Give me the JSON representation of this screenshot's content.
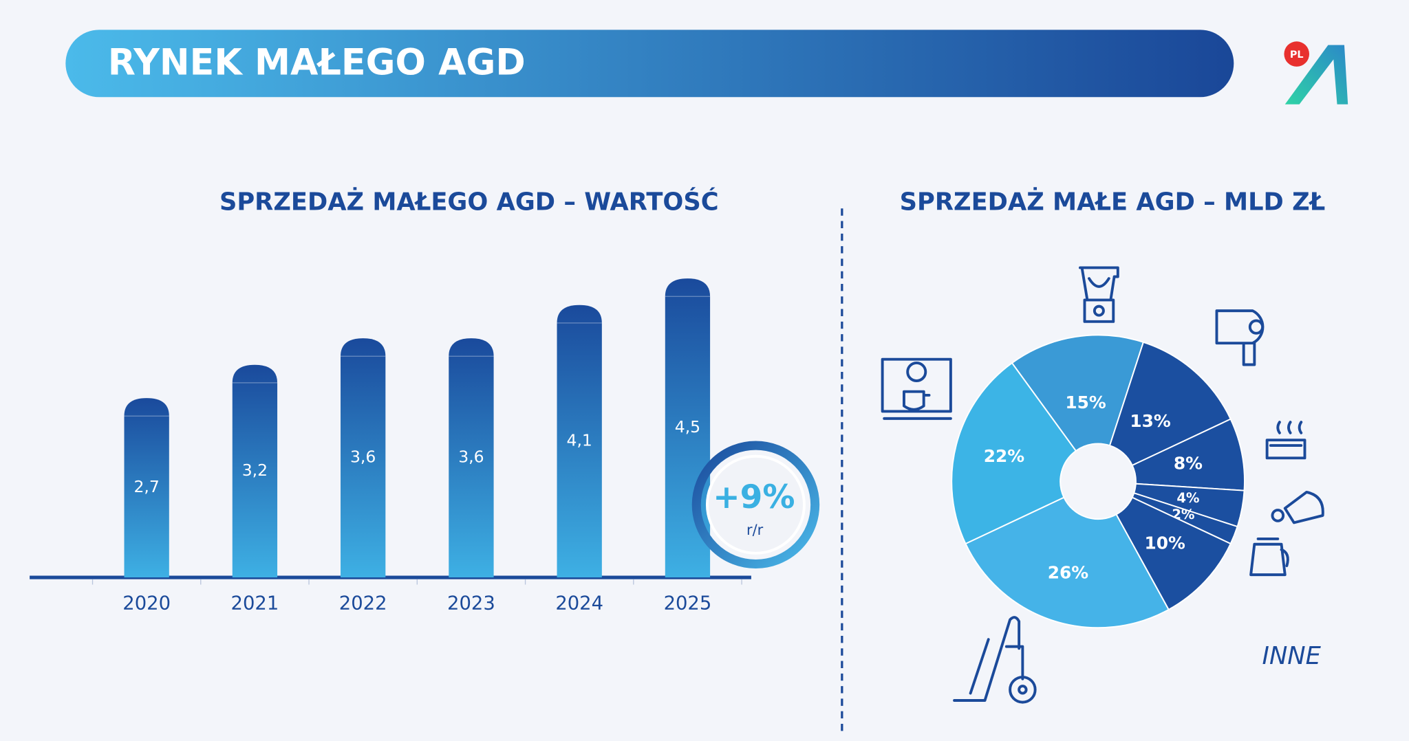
{
  "header": {
    "title": "RYNEK MAŁEGO AGD",
    "logo_badge": "PL"
  },
  "chart_data": [
    {
      "type": "bar",
      "title": "SPRZEDAŻ MAŁEGO AGD – WARTOŚĆ",
      "categories": [
        "2020",
        "2021",
        "2022",
        "2023",
        "2024",
        "2025"
      ],
      "values": [
        2.7,
        3.2,
        3.6,
        3.6,
        4.1,
        4.5
      ],
      "value_labels": [
        "2,7",
        "3,2",
        "3,6",
        "3,6",
        "4,1",
        "4,5"
      ],
      "ylim": [
        0,
        5
      ],
      "colors": [
        "#1a4a9c",
        "#3eb0e4"
      ],
      "annotation": {
        "text": "+9%",
        "subtext": "r/r"
      }
    },
    {
      "type": "pie",
      "title": "SPRZEDAŻ MAŁE AGD – MLD ZŁ",
      "categories": [
        null,
        null,
        null,
        null,
        null,
        "INNE",
        null,
        null
      ],
      "values": [
        15,
        13,
        8,
        4,
        2,
        10,
        26,
        22
      ],
      "value_labels": [
        "15%",
        "13%",
        "8%",
        "4%",
        "2%",
        "10%",
        "26%",
        "22%"
      ],
      "colors": [
        "#3a9ad6",
        "#1b4fa0",
        "#1b4fa0",
        "#1b4fa0",
        "#1b4fa0",
        "#1b4fa0",
        "#45b3e8",
        "#3cb4e6"
      ]
    }
  ]
}
